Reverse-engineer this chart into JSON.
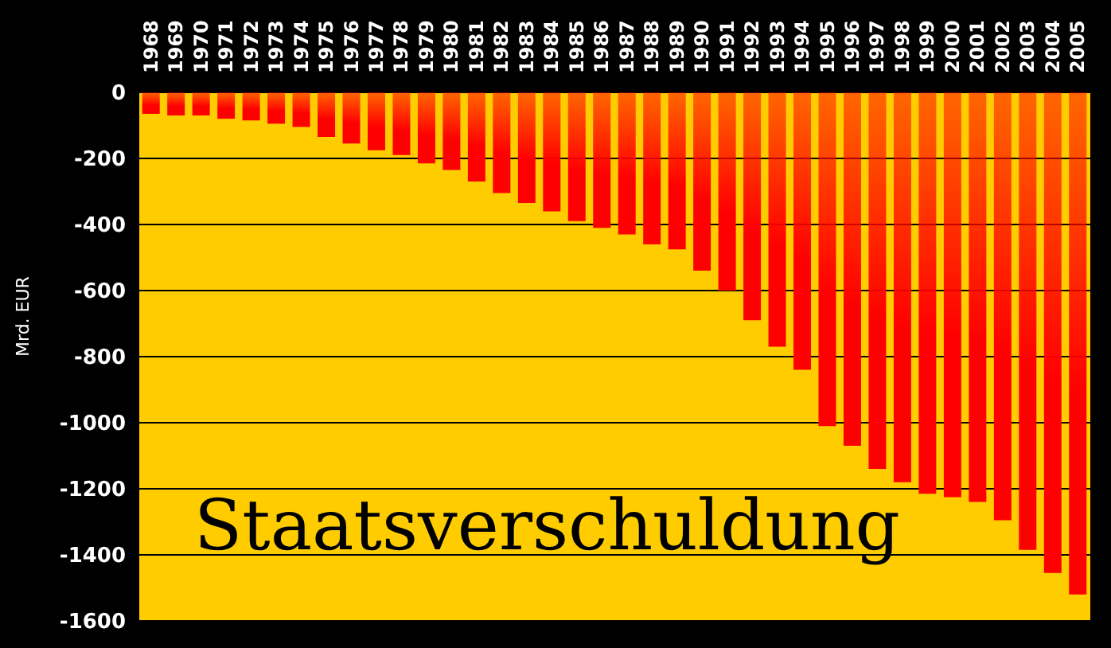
{
  "chart_data": {
    "type": "bar",
    "title": "Staatsverschuldung",
    "ylabel": "Mrd. EUR",
    "categories": [
      "1968",
      "1969",
      "1970",
      "1971",
      "1972",
      "1973",
      "1974",
      "1975",
      "1976",
      "1977",
      "1978",
      "1979",
      "1980",
      "1981",
      "1982",
      "1983",
      "1984",
      "1985",
      "1986",
      "1987",
      "1988",
      "1989",
      "1990",
      "1991",
      "1992",
      "1993",
      "1994",
      "1995",
      "1996",
      "1997",
      "1998",
      "1999",
      "2000",
      "2001",
      "2002",
      "2003",
      "2004",
      "2005"
    ],
    "values": [
      -65,
      -70,
      -70,
      -80,
      -85,
      -95,
      -105,
      -135,
      -155,
      -175,
      -190,
      -215,
      -235,
      -270,
      -305,
      -335,
      -360,
      -390,
      -410,
      -430,
      -460,
      -475,
      -540,
      -600,
      -690,
      -770,
      -840,
      -1010,
      -1070,
      -1140,
      -1180,
      -1215,
      -1225,
      -1240,
      -1295,
      -1385,
      -1455,
      -1520
    ],
    "color": "#ff0000",
    "ylim": [
      -1600,
      0
    ],
    "yticks": [
      -1600,
      -1400,
      -1200,
      -1000,
      -800,
      -600,
      -400,
      -200,
      0
    ],
    "grid": "y"
  }
}
